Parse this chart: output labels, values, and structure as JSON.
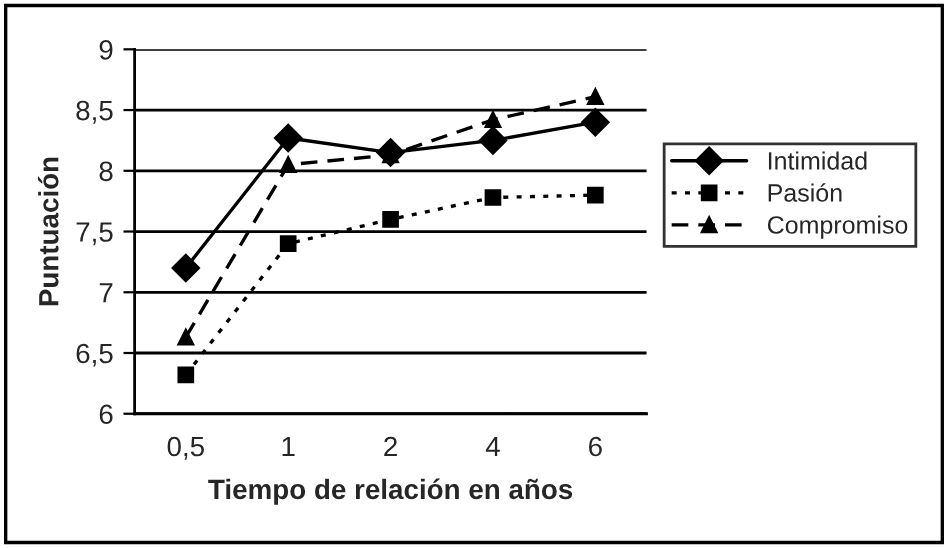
{
  "chart_data": {
    "type": "line",
    "xlabel": "Tiempo de relación en años",
    "ylabel": "Puntuación",
    "categories": [
      "0,5",
      "1",
      "2",
      "4",
      "6"
    ],
    "series": [
      {
        "name": "Intimidad",
        "color": "#000000",
        "marker": "diamond",
        "line_style": "solid",
        "values": [
          7.2,
          8.27,
          8.15,
          8.25,
          8.4
        ]
      },
      {
        "name": "Pasión",
        "color": "#000000",
        "marker": "square",
        "line_style": "dotted",
        "values": [
          6.32,
          7.4,
          7.6,
          7.78,
          7.8
        ]
      },
      {
        "name": "Compromiso",
        "color": "#000000",
        "marker": "triangle",
        "line_style": "dashed",
        "values": [
          6.63,
          8.05,
          8.13,
          8.42,
          8.61
        ]
      }
    ],
    "ylim": [
      6,
      9
    ],
    "yticks": [
      {
        "value": 6,
        "label": "6"
      },
      {
        "value": 6.5,
        "label": "6,5"
      },
      {
        "value": 7,
        "label": "7"
      },
      {
        "value": 7.5,
        "label": "7,5"
      },
      {
        "value": 8,
        "label": "8"
      },
      {
        "value": 8.5,
        "label": "8,5"
      },
      {
        "value": 9,
        "label": "9"
      }
    ],
    "grid": "y",
    "legend": "right"
  }
}
